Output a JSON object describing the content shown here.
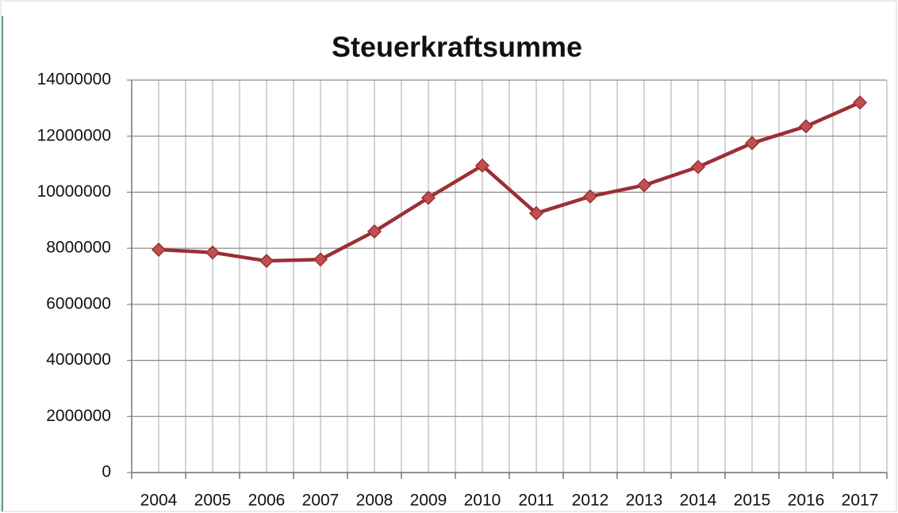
{
  "chart_data": {
    "type": "line",
    "title": "Steuerkraftsumme",
    "categories": [
      "2004",
      "2005",
      "2006",
      "2007",
      "2008",
      "2009",
      "2010",
      "2011",
      "2012",
      "2013",
      "2014",
      "2015",
      "2016",
      "2017"
    ],
    "series": [
      {
        "name": "Steuerkraftsumme",
        "color": "#9b2f35",
        "marker_color": "#c0504d",
        "values": [
          7950000,
          7850000,
          7550000,
          7600000,
          8600000,
          9800000,
          10950000,
          9250000,
          9850000,
          10250000,
          10900000,
          11750000,
          12350000,
          13200000
        ]
      }
    ],
    "ylim": [
      0,
      14000000
    ],
    "yticks": [
      0,
      2000000,
      4000000,
      6000000,
      8000000,
      10000000,
      12000000,
      14000000
    ],
    "grid": true
  }
}
